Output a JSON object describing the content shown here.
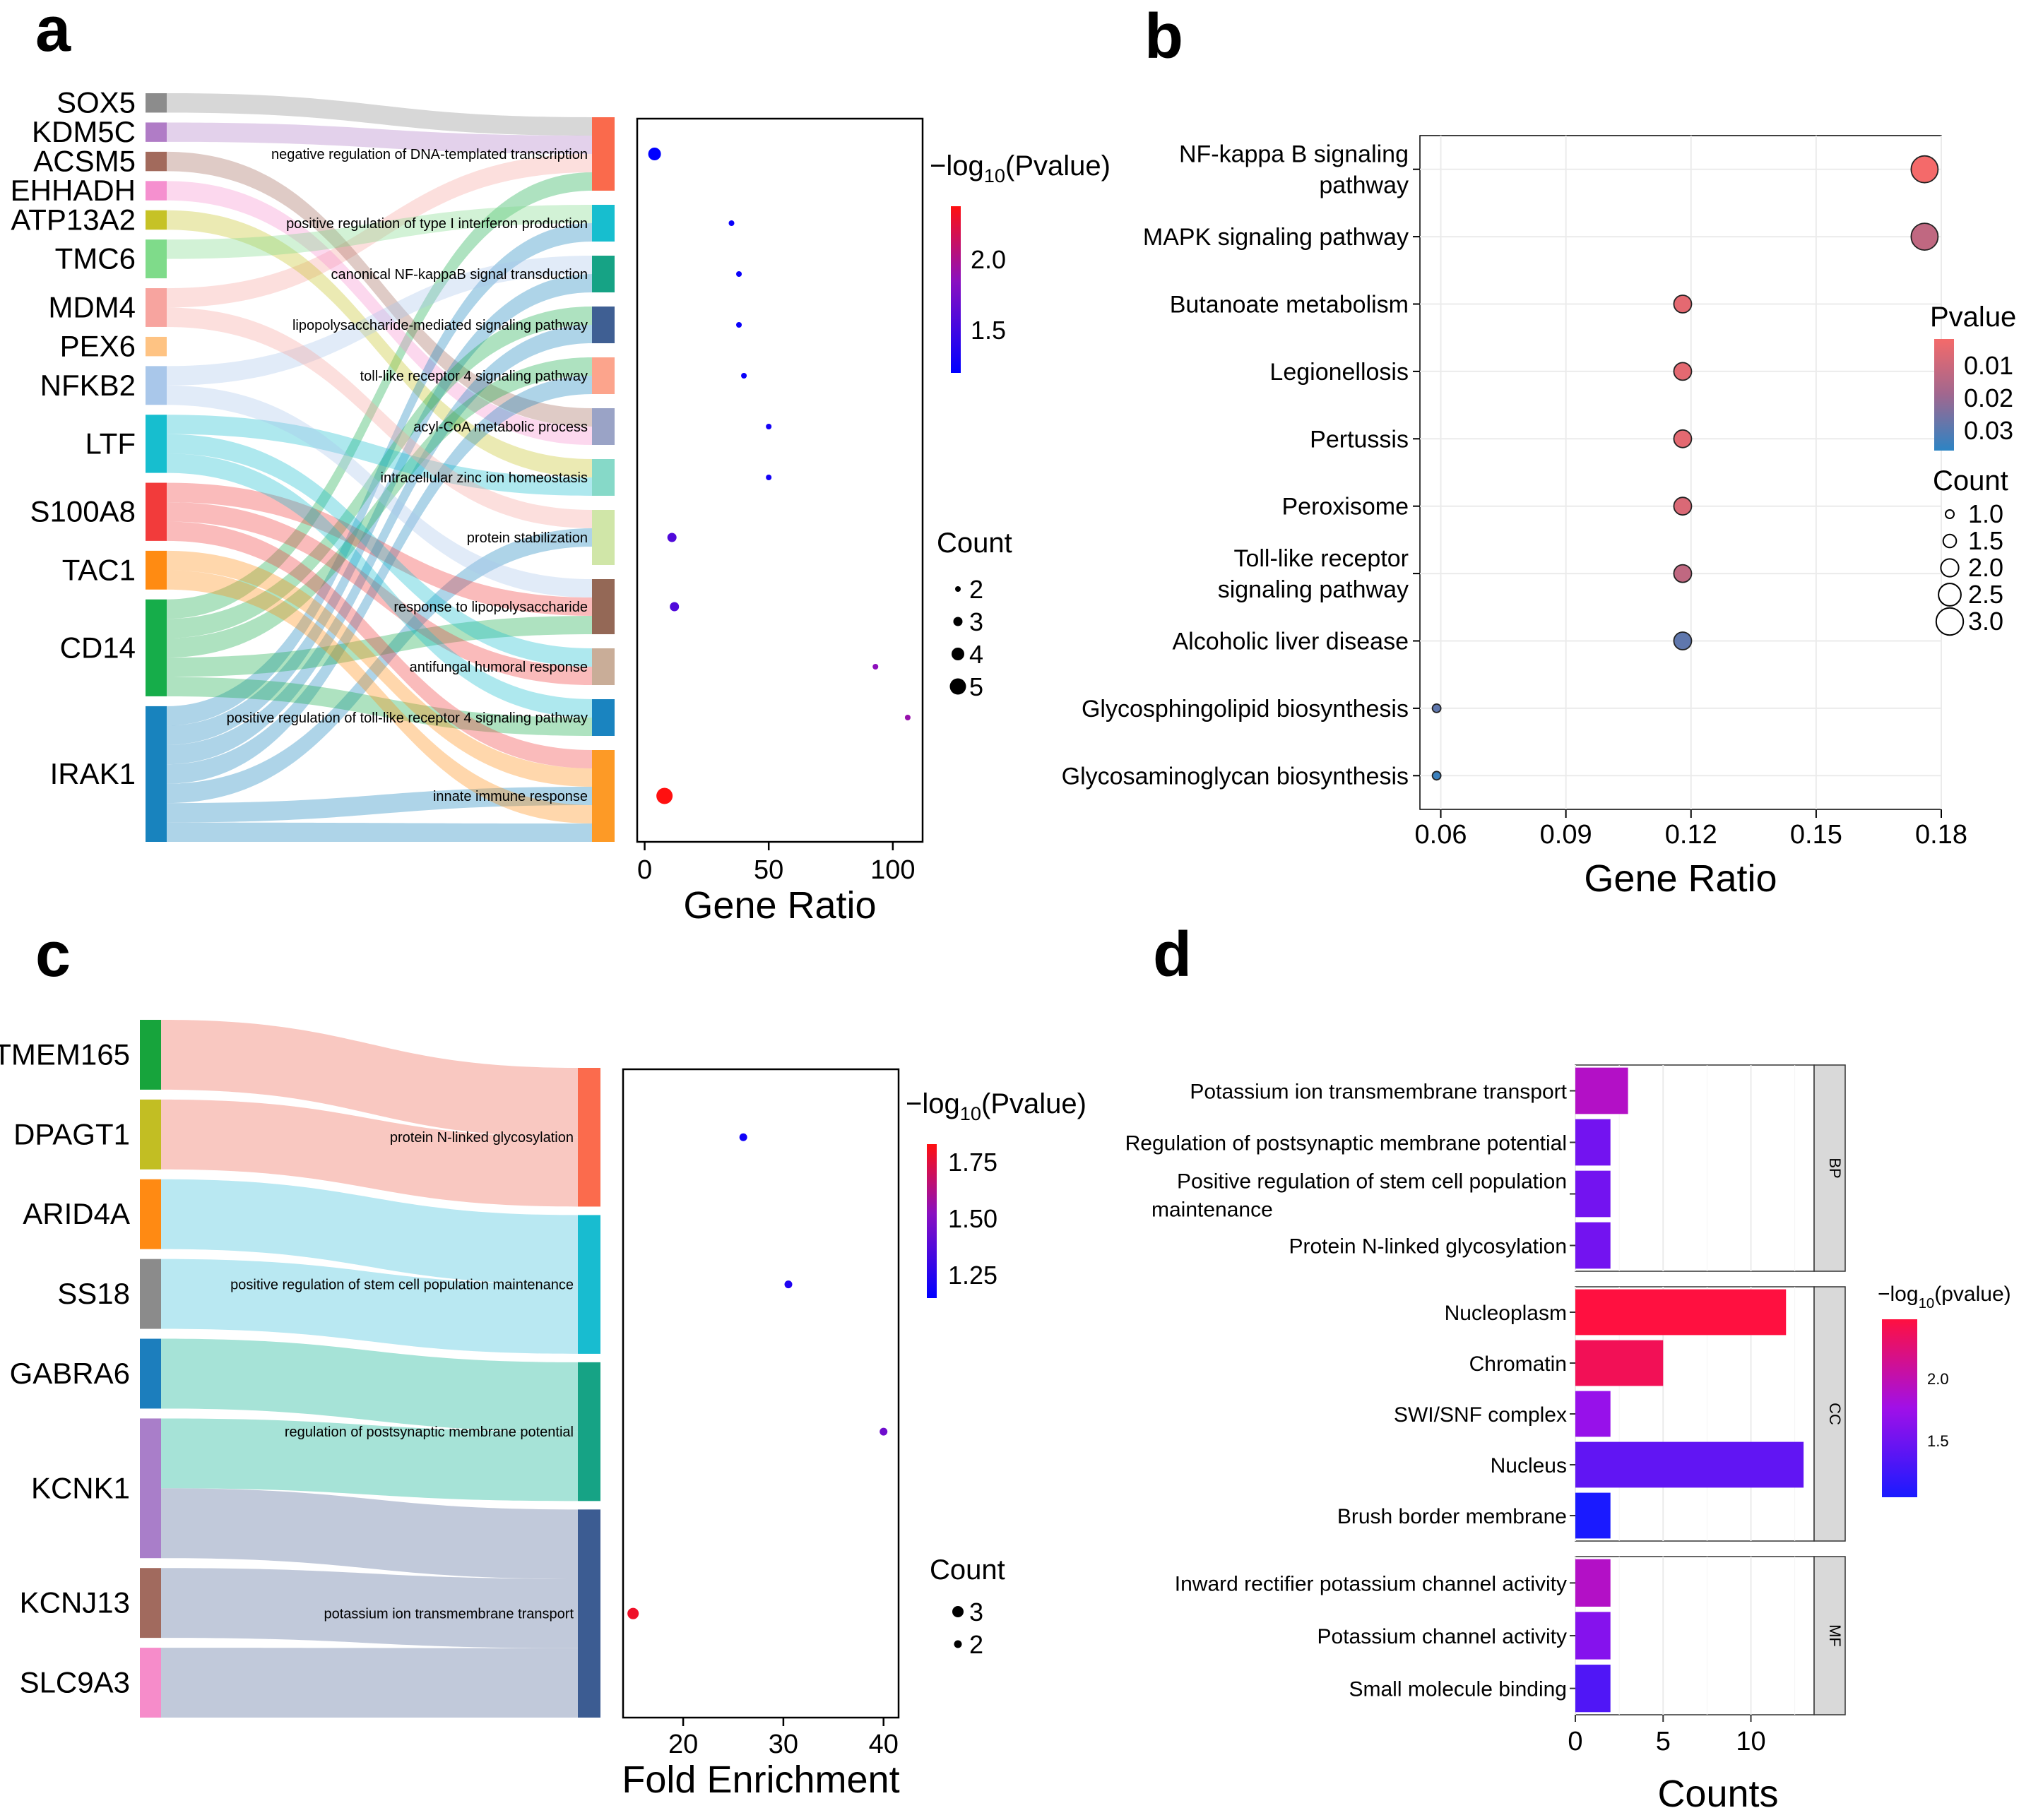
{
  "chart_data": [
    {
      "panel": "a",
      "type": "sankey-dotplot",
      "genes": [
        "SOX5",
        "KDM5C",
        "ACSM5",
        "EHHADH",
        "ATP13A2",
        "TMC6",
        "MDM4",
        "PEX6",
        "NFKB2",
        "LTF",
        "S100A8",
        "TAC1",
        "CD14",
        "IRAK1"
      ],
      "gene_colors": [
        "#8c8c8c",
        "#b07cc6",
        "#a26a5c",
        "#f590cf",
        "#c6c226",
        "#7fdb8a",
        "#f7a49f",
        "#fec383",
        "#a9c7ea",
        "#17becf",
        "#f23b3b",
        "#ff8b12",
        "#16ad4a",
        "#1883be"
      ],
      "gene_sizes": [
        1,
        1,
        1,
        1,
        1,
        2,
        2,
        1,
        2,
        3,
        3,
        2,
        5,
        7
      ],
      "terms": [
        "negative regulation of DNA-templated transcription",
        "positive regulation of type I interferon production",
        "canonical NF-kappaB signal transduction",
        "lipopolysaccharide-mediated signaling pathway",
        "toll-like receptor 4 signaling pathway",
        "acyl-CoA metabolic process",
        "intracellular zinc ion homeostasis",
        "protein stabilization",
        "response to lipopolysaccharide",
        "antifungal humoral response",
        "positive regulation of toll-like receptor 4 signaling pathway",
        "innate immune response"
      ],
      "term_colors": [
        "#fa6a4c",
        "#17becf",
        "#16a385",
        "#3f5f93",
        "#fca48c",
        "#9aa3c6",
        "#86d9c8",
        "#d0e6a8",
        "#946856",
        "#c9ad98",
        "#1a84c0",
        "#fd9a26"
      ],
      "term_sizes": [
        4,
        2,
        2,
        2,
        2,
        2,
        2,
        3,
        3,
        2,
        2,
        5
      ],
      "links": [
        [
          0,
          0
        ],
        [
          1,
          0
        ],
        [
          6,
          0
        ],
        [
          12,
          0
        ],
        [
          2,
          5
        ],
        [
          3,
          5
        ],
        [
          4,
          6
        ],
        [
          5,
          1
        ],
        [
          13,
          1
        ],
        [
          8,
          2
        ],
        [
          13,
          2
        ],
        [
          12,
          3
        ],
        [
          13,
          3
        ],
        [
          12,
          4
        ],
        [
          13,
          4
        ],
        [
          7,
          5
        ],
        [
          9,
          6
        ],
        [
          4,
          7
        ],
        [
          6,
          7
        ],
        [
          13,
          7
        ],
        [
          8,
          8
        ],
        [
          10,
          8
        ],
        [
          12,
          8
        ],
        [
          9,
          9
        ],
        [
          10,
          9
        ],
        [
          9,
          10
        ],
        [
          12,
          10
        ],
        [
          10,
          11
        ],
        [
          11,
          11
        ],
        [
          12,
          11
        ],
        [
          13,
          11
        ],
        [
          11,
          11
        ],
        [
          13,
          11
        ]
      ],
      "x": [
        4,
        35,
        38,
        38,
        40,
        50,
        50,
        11,
        12,
        93,
        106,
        8
      ],
      "pvalue_log": [
        1.1,
        1.15,
        1.15,
        1.15,
        1.15,
        1.2,
        1.2,
        1.5,
        1.5,
        1.8,
        1.85,
        2.35
      ],
      "count": [
        4,
        2,
        2,
        2,
        2,
        2,
        2,
        3,
        3,
        2,
        2,
        5
      ],
      "xlabel": "Gene Ratio",
      "xticks": [
        "0",
        "50",
        "100"
      ],
      "color_legend_prefix": "−log",
      "color_legend_sub": "10",
      "color_legend_suffix": "(Pvalue)",
      "color_ticks": [
        "2.0",
        "1.5"
      ],
      "size_legend_title": "Count",
      "size_ticks": [
        "2",
        "3",
        "4",
        "5"
      ]
    },
    {
      "panel": "b",
      "type": "scatter",
      "categories": [
        [
          "NF-kappa B signaling",
          "pathway"
        ],
        [
          "MAPK signaling pathway"
        ],
        [
          "Butanoate metabolism"
        ],
        [
          "Legionellosis"
        ],
        [
          "Pertussis"
        ],
        [
          "Peroxisome"
        ],
        [
          "Toll-like receptor",
          "signaling pathway"
        ],
        [
          "Alcoholic liver disease"
        ],
        [
          "Glycosphingolipid biosynthesis"
        ],
        [
          "Glycosaminoglycan biosynthesis"
        ]
      ],
      "x": [
        0.176,
        0.176,
        0.118,
        0.118,
        0.118,
        0.118,
        0.118,
        0.118,
        0.059,
        0.059
      ],
      "pvalue": [
        0.005,
        0.015,
        0.008,
        0.008,
        0.008,
        0.01,
        0.015,
        0.03,
        0.03,
        0.035
      ],
      "count": [
        3,
        3,
        2,
        2,
        2,
        2,
        2,
        2,
        1,
        1
      ],
      "xlabel": "Gene Ratio",
      "xlim": [
        0.055,
        0.18
      ],
      "xticks": [
        "0.06",
        "0.09",
        "0.12",
        "0.15",
        "0.18"
      ],
      "color_legend_title": "Pvalue",
      "color_ticks": [
        "0.01",
        "0.02",
        "0.03"
      ],
      "size_legend_title": "Count",
      "size_ticks": [
        "1.0",
        "1.5",
        "2.0",
        "2.5",
        "3.0"
      ]
    },
    {
      "panel": "c",
      "type": "sankey-dotplot",
      "genes": [
        "TMEM165",
        "DPAGT1",
        "ARID4A",
        "SS18",
        "GABRA6",
        "KCNK1",
        "KCNJ13",
        "SLC9A3"
      ],
      "gene_colors": [
        "#17a43c",
        "#c2be23",
        "#ff8a13",
        "#8b8b8b",
        "#1c7ebd",
        "#a97ec9",
        "#a16a5e",
        "#f68cca"
      ],
      "gene_sizes": [
        1,
        1,
        1,
        1,
        1,
        2,
        1,
        1
      ],
      "terms": [
        "protein N-linked glycosylation",
        "positive regulation of stem cell population maintenance",
        "regulation of postsynaptic membrane potential",
        "potassium ion transmembrane transport"
      ],
      "term_colors": [
        "#fb6b4d",
        "#18bcd0",
        "#16a385",
        "#3c5c92"
      ],
      "term_sizes": [
        2,
        2,
        2,
        3
      ],
      "link_colors": [
        "#f9c8c1",
        "#b9e8f2",
        "#a6e3d7",
        "#c1c9da"
      ],
      "links": [
        [
          0,
          0
        ],
        [
          1,
          0
        ],
        [
          2,
          1
        ],
        [
          3,
          1
        ],
        [
          4,
          2
        ],
        [
          5,
          2
        ],
        [
          5,
          3
        ],
        [
          6,
          3
        ],
        [
          7,
          3
        ]
      ],
      "x": [
        26,
        30.5,
        40,
        15
      ],
      "pvalue_log": [
        1.15,
        1.2,
        1.45,
        1.85
      ],
      "count": [
        2,
        2,
        2,
        3
      ],
      "xlabel": "Fold Enrichment",
      "xlim": [
        14,
        41.5
      ],
      "xticks": [
        "20",
        "30",
        "40"
      ],
      "color_legend_prefix": "−log",
      "color_legend_sub": "10",
      "color_legend_suffix": "(Pvalue)",
      "color_ticks": [
        "1.75",
        "1.50",
        "1.25"
      ],
      "size_legend_title": "Count",
      "size_ticks": [
        "3",
        "2"
      ]
    },
    {
      "panel": "d",
      "type": "bar",
      "groups": [
        {
          "name": "BP",
          "categories": [
            [
              "Potassium ion transmembrane transport"
            ],
            [
              "Regulation of postsynaptic membrane potential"
            ],
            [
              "Positive regulation of stem cell population",
              "maintenance"
            ],
            [
              "Protein N-linked glycosylation"
            ]
          ],
          "values": [
            3,
            2,
            2,
            2
          ],
          "log_p": [
            1.9,
            1.5,
            1.5,
            1.5
          ]
        },
        {
          "name": "CC",
          "categories": [
            [
              "Nucleoplasm"
            ],
            [
              "Chromatin"
            ],
            [
              "SWI/SNF complex"
            ],
            [
              "Nucleus"
            ],
            [
              "Brush border membrane"
            ]
          ],
          "values": [
            12,
            5,
            2,
            13,
            2
          ],
          "log_p": [
            2.5,
            2.4,
            1.7,
            1.4,
            1.0
          ]
        },
        {
          "name": "MF",
          "categories": [
            [
              "Inward rectifier potassium channel activity"
            ],
            [
              "Potassium channel activity"
            ],
            [
              "Small molecule binding"
            ]
          ],
          "values": [
            2,
            2,
            2
          ],
          "log_p": [
            1.9,
            1.6,
            1.3
          ]
        }
      ],
      "xlabel": "Counts",
      "xlim": [
        0,
        13.6
      ],
      "xticks": [
        "0",
        "5",
        "10"
      ],
      "color_legend_prefix": "−log",
      "color_legend_sub": "10",
      "color_legend_suffix": "(pvalue)",
      "color_ticks": [
        "2.0",
        "1.5"
      ]
    }
  ],
  "panel_labels": [
    "a",
    "b",
    "c",
    "d"
  ]
}
